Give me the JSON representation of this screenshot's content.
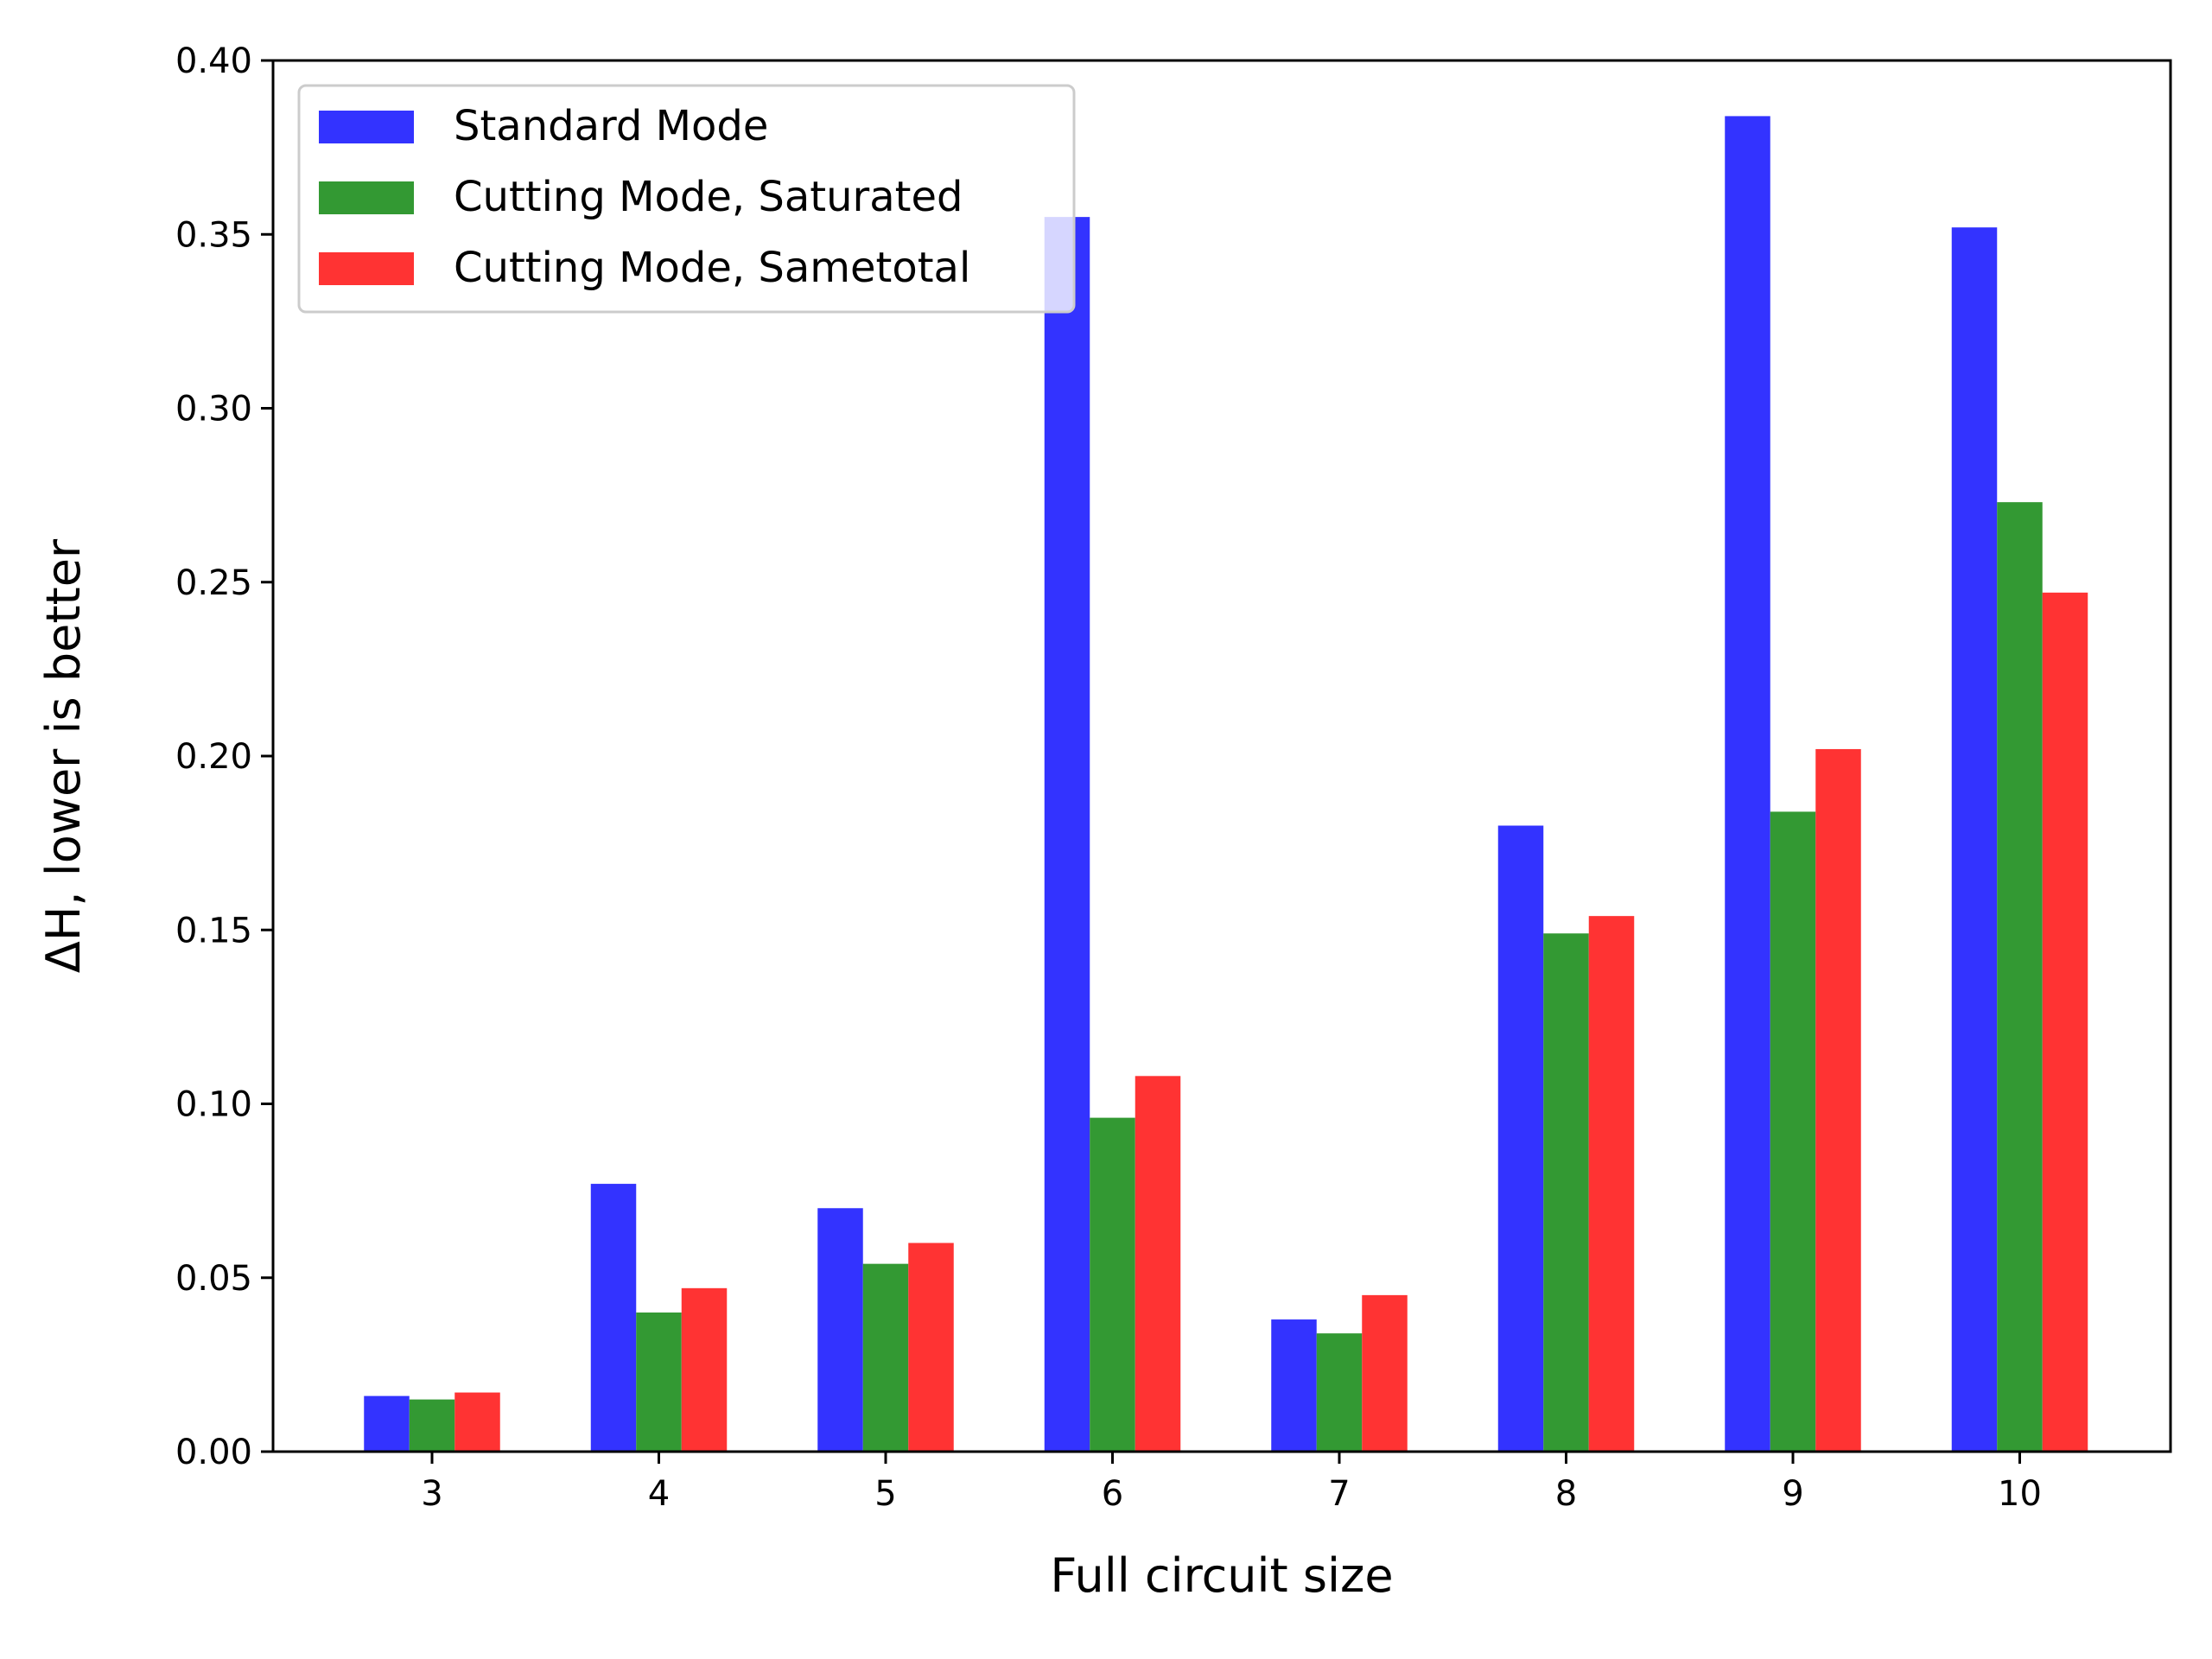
{
  "chart_data": {
    "type": "bar",
    "xlabel": "Full circuit size",
    "ylabel": "ΔH, lower is better",
    "categories": [
      "3",
      "4",
      "5",
      "6",
      "7",
      "8",
      "9",
      "10"
    ],
    "ylim": [
      0,
      0.4
    ],
    "yticks": [
      "0.00",
      "0.05",
      "0.10",
      "0.15",
      "0.20",
      "0.25",
      "0.30",
      "0.35",
      "0.40"
    ],
    "legend_position": "upper-left",
    "series": [
      {
        "name": "Standard Mode",
        "color": "#3333ff",
        "values": [
          0.016,
          0.077,
          0.07,
          0.355,
          0.038,
          0.18,
          0.384,
          0.352
        ]
      },
      {
        "name": "Cutting Mode, Saturated",
        "color": "#339933",
        "values": [
          0.015,
          0.04,
          0.054,
          0.096,
          0.034,
          0.149,
          0.184,
          0.273
        ]
      },
      {
        "name": "Cutting Mode, Sametotal",
        "color": "#ff3333",
        "values": [
          0.017,
          0.047,
          0.06,
          0.108,
          0.045,
          0.154,
          0.202,
          0.247
        ]
      }
    ]
  }
}
